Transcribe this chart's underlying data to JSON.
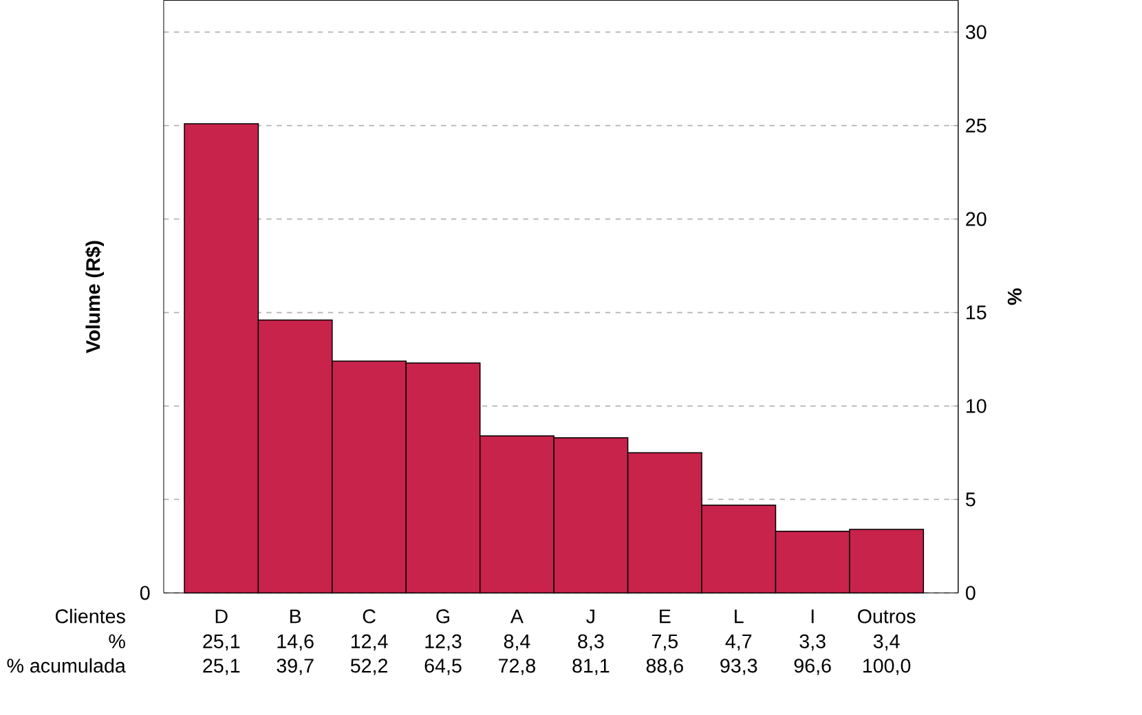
{
  "chart_data": {
    "type": "bar",
    "xlabel": "Clientes",
    "ylabel": "Volume (R$)",
    "y2label": "%",
    "categories": [
      "D",
      "B",
      "C",
      "G",
      "A",
      "J",
      "E",
      "L",
      "I",
      "Outros"
    ],
    "series": [
      {
        "color": "#c8234b",
        "axis": "y2",
        "values": [
          25.1,
          14.6,
          12.4,
          12.3,
          8.4,
          8.3,
          7.5,
          4.7,
          3.3,
          3.4
        ],
        "value_labels": [
          "25,1",
          "14,6",
          "12,4",
          "12,3",
          "8,4",
          "8,3",
          "7,5",
          "4,7",
          "3,3",
          "3,4"
        ]
      }
    ],
    "y2lim": [
      0,
      31.7
    ],
    "y2ticks": [
      0,
      5,
      10,
      15,
      20,
      25,
      30
    ],
    "grid": "y",
    "annotations": [
      "%",
      "% acumulada",
      "0",
      "25,1",
      "39,7",
      "52,2",
      "64,5",
      "72,8",
      "81,1",
      "88,6",
      "93,3",
      "96,6",
      "100,0"
    ]
  }
}
